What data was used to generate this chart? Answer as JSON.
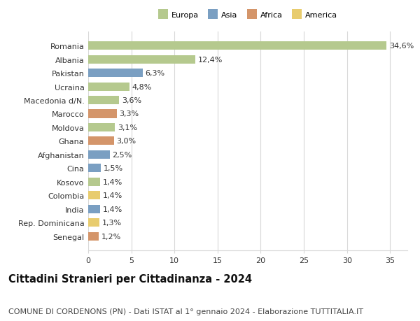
{
  "countries": [
    "Romania",
    "Albania",
    "Pakistan",
    "Ucraina",
    "Macedonia d/N.",
    "Marocco",
    "Moldova",
    "Ghana",
    "Afghanistan",
    "Cina",
    "Kosovo",
    "Colombia",
    "India",
    "Rep. Dominicana",
    "Senegal"
  ],
  "values": [
    34.6,
    12.4,
    6.3,
    4.8,
    3.6,
    3.3,
    3.1,
    3.0,
    2.5,
    1.5,
    1.4,
    1.4,
    1.4,
    1.3,
    1.2
  ],
  "labels": [
    "34,6%",
    "12,4%",
    "6,3%",
    "4,8%",
    "3,6%",
    "3,3%",
    "3,1%",
    "3,0%",
    "2,5%",
    "1,5%",
    "1,4%",
    "1,4%",
    "1,4%",
    "1,3%",
    "1,2%"
  ],
  "continents": [
    "Europa",
    "Europa",
    "Asia",
    "Europa",
    "Europa",
    "Africa",
    "Europa",
    "Africa",
    "Asia",
    "Asia",
    "Europa",
    "America",
    "Asia",
    "America",
    "Africa"
  ],
  "continent_colors": {
    "Europa": "#b5c98e",
    "Asia": "#7a9fc2",
    "Africa": "#d4956a",
    "America": "#e8cc6e"
  },
  "legend_labels": [
    "Europa",
    "Asia",
    "Africa",
    "America"
  ],
  "legend_colors": [
    "#b5c98e",
    "#7a9fc2",
    "#d4956a",
    "#e8cc6e"
  ],
  "title": "Cittadini Stranieri per Cittadinanza - 2024",
  "subtitle": "COMUNE DI CORDENONS (PN) - Dati ISTAT al 1° gennaio 2024 - Elaborazione TUTTITALIA.IT",
  "xlim": [
    0,
    37
  ],
  "xticks": [
    0,
    5,
    10,
    15,
    20,
    25,
    30,
    35
  ],
  "bg_color": "#ffffff",
  "grid_color": "#d8d8d8",
  "bar_height": 0.62,
  "title_fontsize": 10.5,
  "subtitle_fontsize": 8,
  "label_fontsize": 8,
  "tick_fontsize": 8
}
